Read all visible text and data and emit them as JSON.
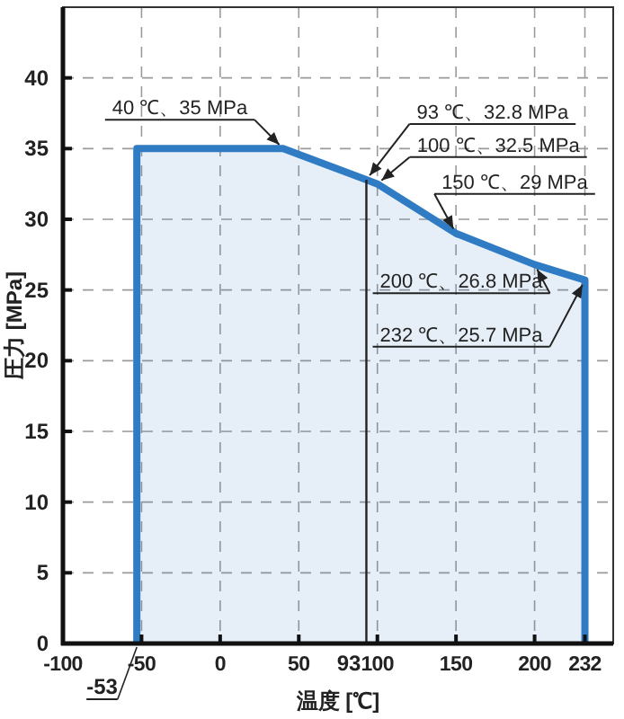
{
  "chart_data": {
    "type": "area",
    "xlabel": "温度 [℃]",
    "ylabel": "圧力 [MPa]",
    "series": [
      {
        "color": "#2f7bc4",
        "x": [
          -53,
          -53,
          40,
          93,
          100,
          150,
          200,
          232,
          232
        ],
        "values": [
          0,
          35,
          35,
          32.8,
          32.5,
          29,
          26.8,
          25.7,
          0
        ]
      }
    ],
    "xlim": [
      -100,
      250
    ],
    "ylim": [
      0,
      45
    ],
    "xticks": [
      -100,
      -50,
      0,
      50,
      100,
      150,
      200,
      232
    ],
    "yticks": [
      0,
      5,
      10,
      15,
      20,
      25,
      30,
      35,
      40
    ],
    "grid": true,
    "ref_lines": [
      {
        "axis": "x",
        "value": 93,
        "label": "93",
        "color": "#222222"
      }
    ],
    "annotations": [
      {
        "text": "40 ℃、35 MPa",
        "x": 40,
        "y": 35
      },
      {
        "text": "93 ℃、32.8 MPa",
        "x": 93,
        "y": 32.8
      },
      {
        "text": "100 ℃、32.5 MPa",
        "x": 100,
        "y": 32.5
      },
      {
        "text": "150 ℃、29 MPa",
        "x": 150,
        "y": 29
      },
      {
        "text": "200 ℃、26.8 MPa",
        "x": 200,
        "y": 26.8
      },
      {
        "text": "232 ℃、25.7 MPa",
        "x": 232,
        "y": 25.7
      },
      {
        "text": "-53",
        "x": -53,
        "y": 0
      }
    ]
  }
}
